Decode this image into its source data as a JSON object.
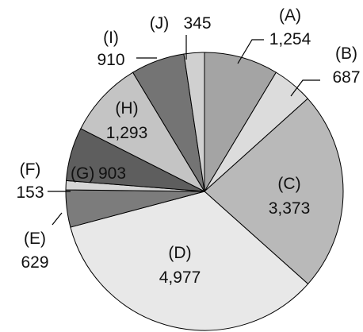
{
  "chart_data": {
    "type": "pie",
    "title": "",
    "direction": "clockwise from 12 o'clock",
    "slices": [
      {
        "label": "(A)",
        "value": 1254,
        "value_text": "1,254",
        "color": "#a4a4a4"
      },
      {
        "label": "(B)",
        "value": 687,
        "value_text": "687",
        "color": "#dcdcdc"
      },
      {
        "label": "(C)",
        "value": 3373,
        "value_text": "3,373",
        "color": "#b9b9b9"
      },
      {
        "label": "(D)",
        "value": 4977,
        "value_text": "4,977",
        "color": "#e8e8e8"
      },
      {
        "label": "(E)",
        "value": 629,
        "value_text": "629",
        "color": "#7c7c7c"
      },
      {
        "label": "(F)",
        "value": 153,
        "value_text": "153",
        "color": "#d6d6d6"
      },
      {
        "label": "(G)",
        "value": 903,
        "value_text": "903",
        "color": "#5e5e5e"
      },
      {
        "label": "(H)",
        "value": 1293,
        "value_text": "1,293",
        "color": "#c4c4c4"
      },
      {
        "label": "(I)",
        "value": 910,
        "value_text": "910",
        "color": "#747474"
      },
      {
        "label": "(J)",
        "value": 345,
        "value_text": "345",
        "color": "#d0d0d0"
      }
    ]
  }
}
